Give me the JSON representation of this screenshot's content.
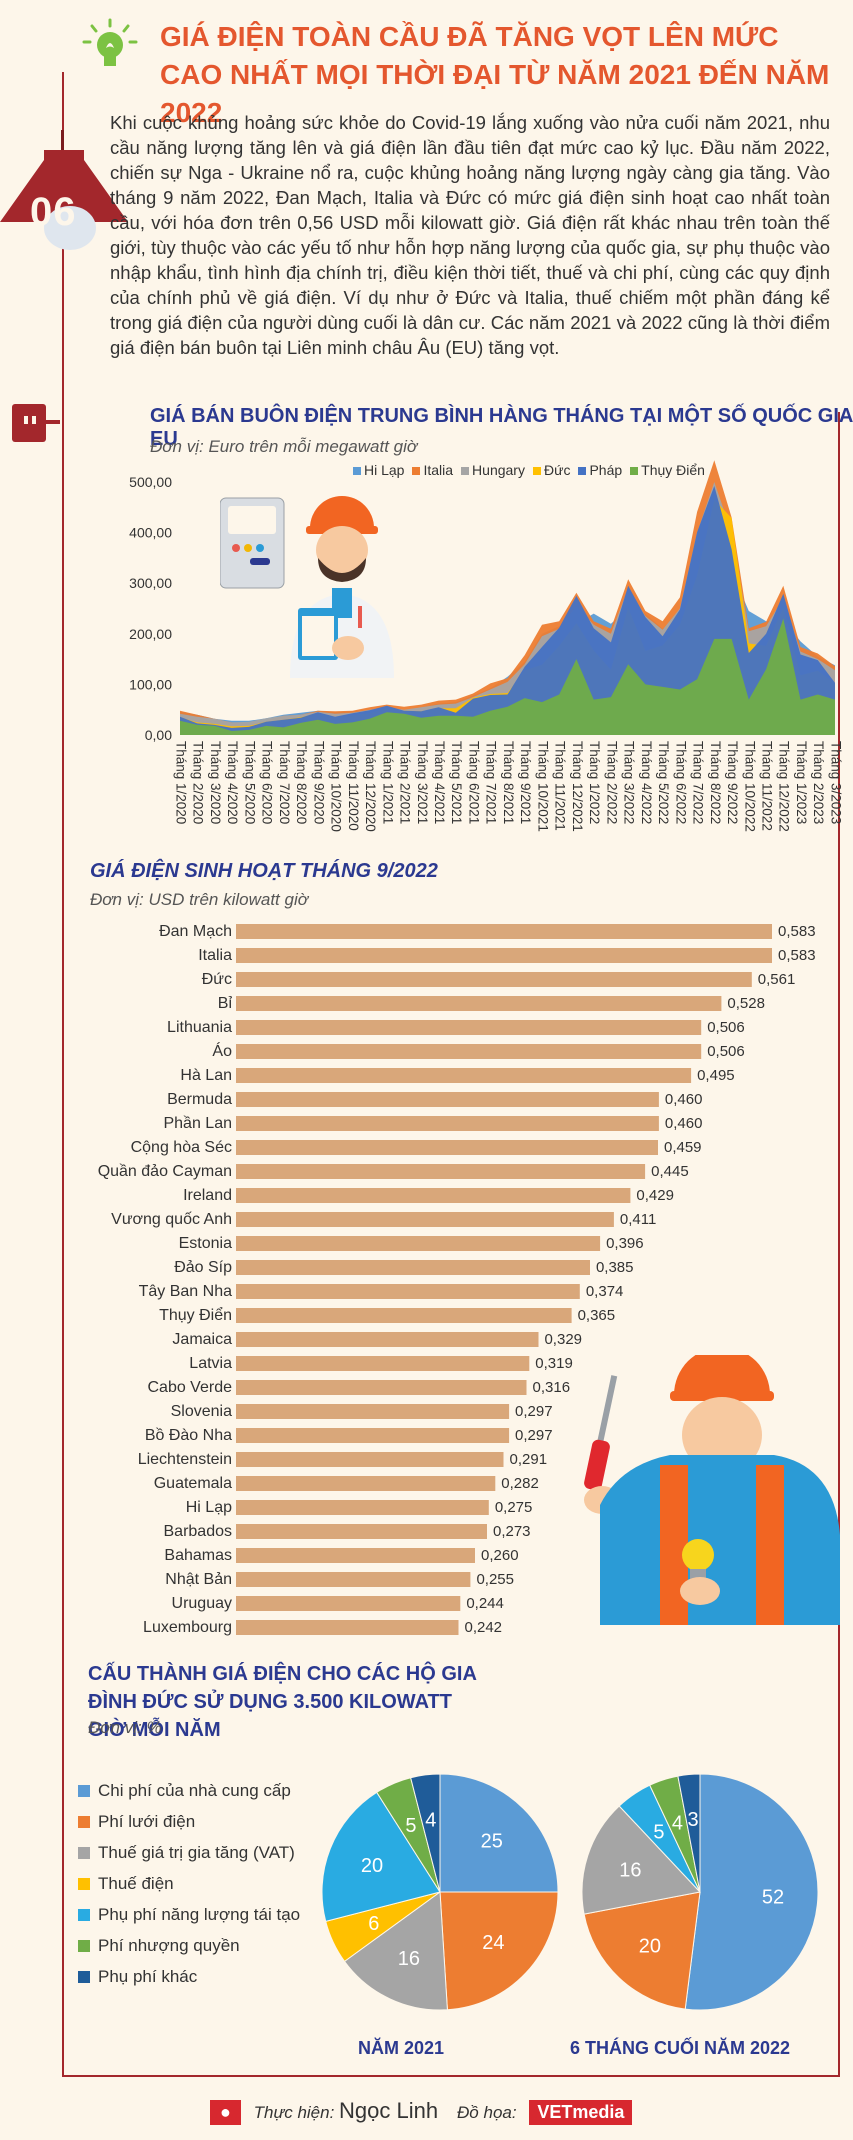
{
  "header": {
    "title": "GIÁ ĐIỆN TOÀN CẦU ĐÃ TĂNG VỌT LÊN MỨC CAO NHẤT MỌI THỜI ĐẠI TỪ NĂM 2021 ĐẾN NĂM 2022",
    "badge_number": "06",
    "intro": "Khi cuộc khủng hoảng sức khỏe do Covid-19 lắng xuống vào nửa cuối năm 2021, nhu cầu năng lượng tăng lên và giá điện lần đầu tiên đạt mức cao kỷ lục. Đầu năm 2022, chiến sự Nga - Ukraine nổ ra, cuộc khủng hoảng năng lượng ngày càng gia tăng. Vào tháng 9 năm 2022, Đan Mạch, Italia và Đức có mức giá điện sinh hoạt cao nhất toàn cầu, với hóa đơn trên 0,56 USD mỗi kilowatt giờ. Giá điện rất khác nhau trên toàn thế giới, tùy thuộc vào các yếu tố như hỗn hợp năng lượng của quốc gia, sự phụ thuộc vào nhập khẩu, tình hình địa chính trị, điều kiện thời tiết, thuế và chi phí, cùng các quy định của chính phủ về giá điện. Ví dụ như ở Đức và Italia, thuế chiếm một phần đáng kể trong giá điện của người dùng cuối là dân cư. Các năm 2021 và 2022 cũng là thời điểm giá điện bán buôn tại Liên minh châu Âu (EU) tăng vọt."
  },
  "chart_data": [
    {
      "type": "area",
      "title": "GIÁ BÁN BUÔN ĐIỆN TRUNG BÌNH HÀNG THÁNG TẠI MỘT SỐ QUỐC GIA EU",
      "unit": "Đơn vị: Euro trên mỗi megawatt giờ",
      "ylim": [
        0,
        500
      ],
      "ytick_labels": [
        "0,00",
        "100,00",
        "200,00",
        "300,00",
        "400,00",
        "500,00"
      ],
      "legend_position": "top",
      "x": [
        "Tháng 1/2020",
        "Tháng 2/2020",
        "Tháng 3/2020",
        "Tháng 4/2020",
        "Tháng 5/2020",
        "Tháng 6/2020",
        "Tháng 7/2020",
        "Tháng 8/2020",
        "Tháng 9/2020",
        "Tháng 10/2020",
        "Tháng 11/2020",
        "Tháng 12/2020",
        "Tháng 1/2021",
        "Tháng 2/2021",
        "Tháng 3/2021",
        "Tháng 4/2021",
        "Tháng 5/2021",
        "Tháng 6/2021",
        "Tháng 7/2021",
        "Tháng 8/2021",
        "Tháng 9/2021",
        "Tháng 10/2021",
        "Tháng 11/2021",
        "Tháng 12/2021",
        "Tháng 1/2022",
        "Tháng 2/2022",
        "Tháng 3/2022",
        "Tháng 4/2022",
        "Tháng 5/2022",
        "Tháng 6/2022",
        "Tháng 7/2022",
        "Tháng 8/2022",
        "Tháng 9/2022",
        "Tháng 10/2022",
        "Tháng 11/2022",
        "Tháng 12/2022",
        "Tháng 1/2023",
        "Tháng 2/2023",
        "Tháng 3/2023"
      ],
      "series": [
        {
          "name": "Hi Lạp",
          "color": "#5b9bd5",
          "values": [
            46,
            40,
            32,
            28,
            28,
            33,
            40,
            44,
            48,
            45,
            47,
            50,
            55,
            50,
            55,
            62,
            65,
            78,
            92,
            115,
            145,
            200,
            215,
            220,
            240,
            220,
            250,
            240,
            210,
            230,
            320,
            420,
            325,
            245,
            225,
            228,
            185,
            155,
            138
          ]
        },
        {
          "name": "Italia",
          "color": "#ed7d31",
          "values": [
            48,
            40,
            32,
            25,
            22,
            28,
            38,
            40,
            48,
            47,
            48,
            55,
            60,
            56,
            60,
            68,
            70,
            82,
            102,
            112,
            158,
            218,
            225,
            281,
            225,
            210,
            308,
            245,
            225,
            272,
            441,
            543,
            430,
            211,
            224,
            295,
            174,
            161,
            136
          ]
        },
        {
          "name": "Hungary",
          "color": "#a5a5a5",
          "values": [
            42,
            36,
            32,
            25,
            26,
            33,
            38,
            40,
            46,
            42,
            44,
            50,
            55,
            50,
            55,
            60,
            62,
            75,
            90,
            105,
            140,
            195,
            210,
            255,
            218,
            200,
            290,
            235,
            208,
            250,
            400,
            500,
            400,
            205,
            215,
            270,
            165,
            150,
            128
          ]
        },
        {
          "name": "Đức",
          "color": "#ffc000",
          "values": [
            35,
            25,
            22,
            17,
            18,
            26,
            30,
            35,
            43,
            34,
            39,
            43,
            53,
            48,
            47,
            53,
            53,
            74,
            81,
            83,
            128,
            139,
            176,
            221,
            167,
            129,
            252,
            166,
            177,
            218,
            315,
            465,
            429,
            181,
            176,
            252,
            118,
            127,
            102
          ]
        },
        {
          "name": "Pháp",
          "color": "#4472c4",
          "values": [
            36,
            23,
            20,
            14,
            16,
            26,
            30,
            34,
            45,
            36,
            43,
            49,
            58,
            48,
            47,
            55,
            44,
            72,
            79,
            80,
            135,
            174,
            212,
            275,
            211,
            183,
            295,
            233,
            195,
            248,
            401,
            492,
            367,
            162,
            200,
            279,
            159,
            148,
            103
          ]
        },
        {
          "name": "Thụy Điển",
          "color": "#70ad47",
          "values": [
            28,
            20,
            18,
            8,
            10,
            18,
            15,
            24,
            30,
            22,
            25,
            32,
            45,
            42,
            34,
            38,
            38,
            36,
            48,
            56,
            73,
            65,
            80,
            150,
            70,
            75,
            140,
            100,
            95,
            90,
            110,
            190,
            190,
            70,
            130,
            230,
            70,
            80,
            70
          ]
        }
      ]
    },
    {
      "type": "bar",
      "orientation": "horizontal",
      "title": "GIÁ ĐIỆN SINH HOẠT THÁNG 9/2022",
      "unit": "Đơn vị: USD trên kilowatt giờ",
      "categories": [
        "Đan Mạch",
        "Italia",
        "Đức",
        "Bỉ",
        "Lithuania",
        "Áo",
        "Hà Lan",
        "Bermuda",
        "Phần Lan",
        "Cộng hòa Séc",
        "Quần đảo Cayman",
        "Ireland",
        "Vương quốc Anh",
        "Estonia",
        "Đảo Síp",
        "Tây Ban Nha",
        "Thụy Điển",
        "Jamaica",
        "Latvia",
        "Cabo Verde",
        "Slovenia",
        "Bồ Đào Nha",
        "Liechtenstein",
        "Guatemala",
        "Hi Lạp",
        "Barbados",
        "Bahamas",
        "Nhật Bản",
        "Uruguay",
        "Luxembourg"
      ],
      "values": [
        0.583,
        0.583,
        0.561,
        0.528,
        0.506,
        0.506,
        0.495,
        0.46,
        0.46,
        0.459,
        0.445,
        0.429,
        0.411,
        0.396,
        0.385,
        0.374,
        0.365,
        0.329,
        0.319,
        0.316,
        0.297,
        0.297,
        0.291,
        0.282,
        0.275,
        0.273,
        0.26,
        0.255,
        0.244,
        0.242
      ],
      "labels": [
        "0,583",
        "0,583",
        "0,561",
        "0,528",
        "0,506",
        "0,506",
        "0,495",
        "0,460",
        "0,460",
        "0,459",
        "0,445",
        "0,429",
        "0,411",
        "0,396",
        "0,385",
        "0,374",
        "0,365",
        "0,329",
        "0,319",
        "0,316",
        "0,297",
        "0,297",
        "0,291",
        "0,282",
        "0,275",
        "0,273",
        "0,260",
        "0,255",
        "0,244",
        "0,242"
      ],
      "bar_color": "#d9a77a"
    },
    {
      "type": "pie",
      "title": "CẤU THÀNH GIÁ ĐIỆN CHO CÁC HỘ GIA ĐÌNH ĐỨC SỬ DỤNG 3.500 KILOWATT GIỜ MỖI NĂM",
      "unit": "Đơn vị: %",
      "categories": [
        "Chi phí của nhà cung cấp",
        "Phí lưới điện",
        "Thuế giá trị gia tăng (VAT)",
        "Thuế điện",
        "Phụ phí năng lượng tái tạo",
        "Phí nhượng quyền",
        "Phụ phí khác"
      ],
      "colors": [
        "#5b9bd5",
        "#ed7d31",
        "#a5a5a5",
        "#ffc000",
        "#29abe2",
        "#70ad47",
        "#1f5c99"
      ],
      "pies": [
        {
          "caption": "NĂM 2021",
          "values": [
            25,
            24,
            16,
            6,
            20,
            5,
            4
          ]
        },
        {
          "caption": "6 THÁNG CUỐI NĂM 2022",
          "values": [
            52,
            20,
            16,
            0,
            5,
            4,
            3
          ]
        }
      ]
    }
  ],
  "footer": {
    "credit_label": "Thực hiện:",
    "credit_name": "Ngọc Linh",
    "design_label": "Đồ họa:",
    "logo_text": "VETmedia"
  }
}
